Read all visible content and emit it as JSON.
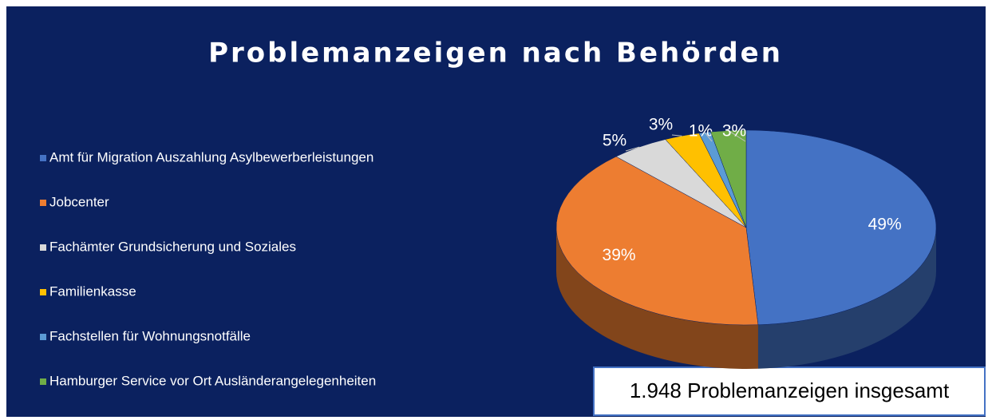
{
  "chart_data": {
    "type": "pie",
    "title": "Problemanzeigen nach Behörden",
    "categories": [
      "Amt für Migration Auszahlung Asylbewerberleistungen",
      "Jobcenter",
      "Fachämter Grundsicherung und Soziales",
      "Familienkasse",
      "Fachstellen für Wohnungsnotfälle",
      "Hamburger Service vor Ort Ausländerangelegenheiten"
    ],
    "values": [
      49,
      39,
      5,
      3,
      1,
      3
    ],
    "value_labels": [
      "49%",
      "39%",
      "5%",
      "3%",
      "1%",
      "3%"
    ],
    "colors": [
      "#4472c4",
      "#ed7d31",
      "#d9d9d9",
      "#ffc000",
      "#5b9bd5",
      "#70ad47"
    ],
    "legend": "left",
    "annotation": "1.948 Problemanzeigen insgesamt"
  }
}
